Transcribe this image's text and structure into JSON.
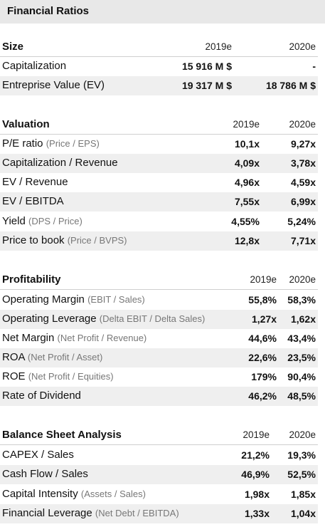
{
  "title": "Financial Ratios",
  "size": {
    "heading": "Size",
    "years": [
      "2019e",
      "2020e"
    ],
    "rows": [
      {
        "label": "Capitalization",
        "v1": "15 916 M $",
        "v2": "-"
      },
      {
        "label": "Entreprise Value (EV)",
        "v1": "19 317 M $",
        "v2": "18 786 M $"
      }
    ]
  },
  "valuation": {
    "heading": "Valuation",
    "years": [
      "2019e",
      "2020e"
    ],
    "rows": [
      {
        "label": "P/E ratio",
        "sub": "(Price / EPS)",
        "v1": "10,1x",
        "v2": "9,27x"
      },
      {
        "label": "Capitalization / Revenue",
        "sub": "",
        "v1": "4,09x",
        "v2": "3,78x"
      },
      {
        "label": "EV / Revenue",
        "sub": "",
        "v1": "4,96x",
        "v2": "4,59x"
      },
      {
        "label": "EV / EBITDA",
        "sub": "",
        "v1": "7,55x",
        "v2": "6,99x"
      },
      {
        "label": "Yield",
        "sub": "(DPS / Price)",
        "v1": "4,55%",
        "v2": "5,24%"
      },
      {
        "label": "Price to book",
        "sub": "(Price / BVPS)",
        "v1": "12,8x",
        "v2": "7,71x"
      }
    ]
  },
  "profitability": {
    "heading": "Profitability",
    "years": [
      "2019e",
      "2020e"
    ],
    "rows": [
      {
        "label": "Operating Margin",
        "sub": "(EBIT / Sales)",
        "v1": "55,8%",
        "v2": "58,3%"
      },
      {
        "label": "Operating Leverage",
        "sub": "(Delta EBIT / Delta Sales)",
        "v1": "1,27x",
        "v2": "1,62x"
      },
      {
        "label": "Net Margin",
        "sub": "(Net Profit / Revenue)",
        "v1": "44,6%",
        "v2": "43,4%"
      },
      {
        "label": "ROA",
        "sub": "(Net Profit / Asset)",
        "v1": "22,6%",
        "v2": "23,5%"
      },
      {
        "label": "ROE",
        "sub": "(Net Profit / Equities)",
        "v1": "179%",
        "v2": "90,4%"
      },
      {
        "label": "Rate of Dividend",
        "sub": "",
        "v1": "46,2%",
        "v2": "48,5%"
      }
    ]
  },
  "balance": {
    "heading": "Balance Sheet Analysis",
    "years": [
      "2019e",
      "2020e"
    ],
    "rows": [
      {
        "label": "CAPEX / Sales",
        "sub": "",
        "v1": "21,2%",
        "v2": "19,3%"
      },
      {
        "label": "Cash Flow / Sales",
        "sub": "",
        "v1": "46,9%",
        "v2": "52,5%"
      },
      {
        "label": "Capital Intensity",
        "sub": "(Assets / Sales)",
        "v1": "1,98x",
        "v2": "1,85x"
      },
      {
        "label": "Financial Leverage",
        "sub": "(Net Debt / EBITDA)",
        "v1": "1,33x",
        "v2": "1,04x"
      }
    ]
  }
}
